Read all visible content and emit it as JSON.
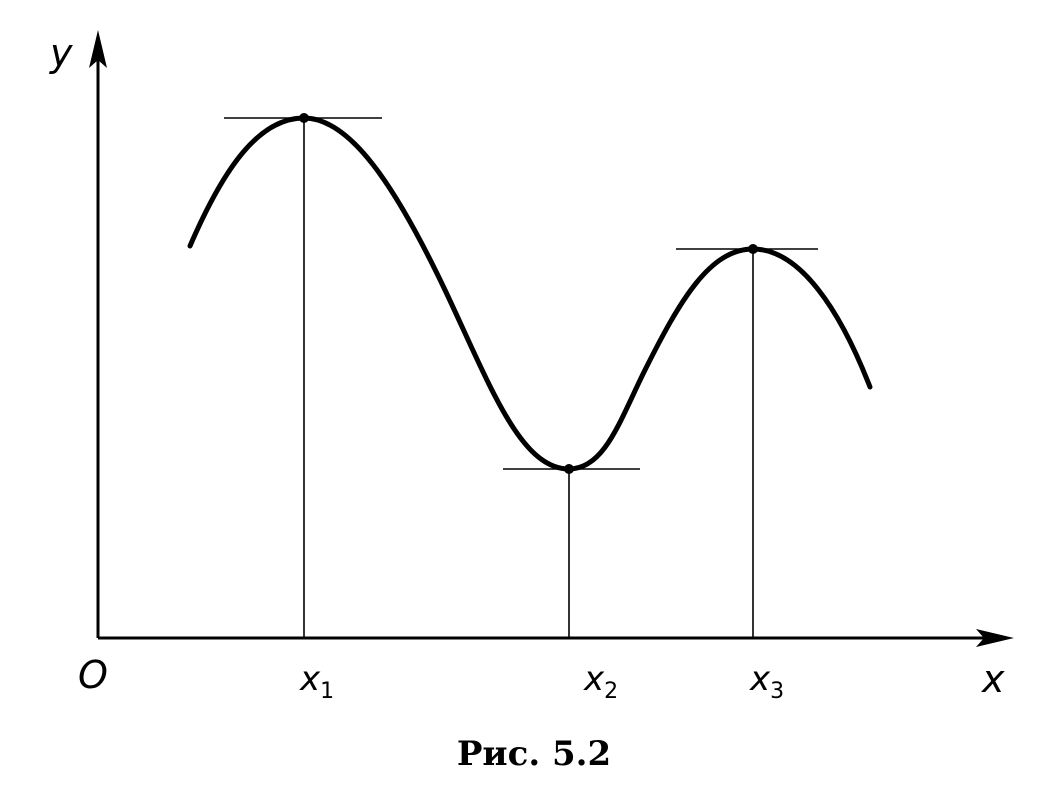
{
  "figure": {
    "caption": "Рис. 5.2",
    "axes": {
      "y_label": "y",
      "x_label": "x",
      "origin_label": "O"
    },
    "ticks": [
      {
        "base": "x",
        "sub": "1"
      },
      {
        "base": "x",
        "sub": "2"
      },
      {
        "base": "x",
        "sub": "3"
      }
    ]
  }
}
